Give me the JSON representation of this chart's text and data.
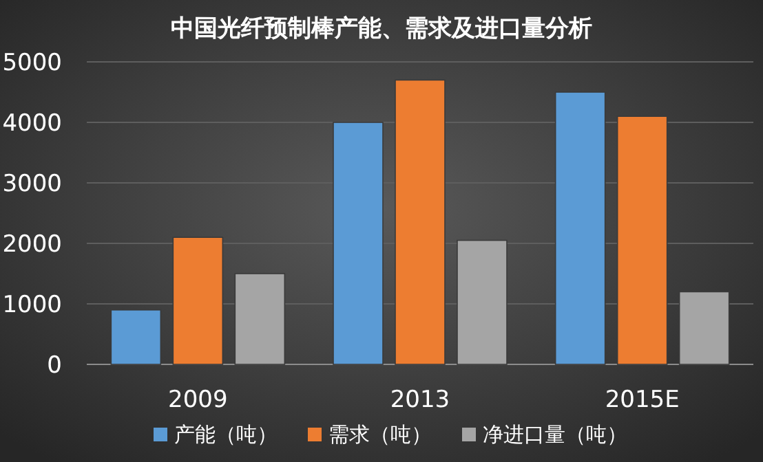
{
  "chart_data": {
    "type": "bar",
    "title": "中国光纤预制棒产能、需求及进口量分析",
    "categories": [
      "2009",
      "2013",
      "2015E"
    ],
    "series": [
      {
        "name": "产能（吨）",
        "color": "#5b9bd5",
        "values": [
          900,
          4000,
          4500
        ]
      },
      {
        "name": "需求（吨）",
        "color": "#ed7d31",
        "values": [
          2100,
          4700,
          4100
        ]
      },
      {
        "name": "净进口量（吨）",
        "color": "#a5a5a5",
        "values": [
          1500,
          2050,
          1200
        ]
      }
    ],
    "ylim": [
      0,
      5000
    ],
    "yticks": [
      0,
      1000,
      2000,
      3000,
      4000,
      5000
    ],
    "grid": "y",
    "legend": "bottom"
  }
}
